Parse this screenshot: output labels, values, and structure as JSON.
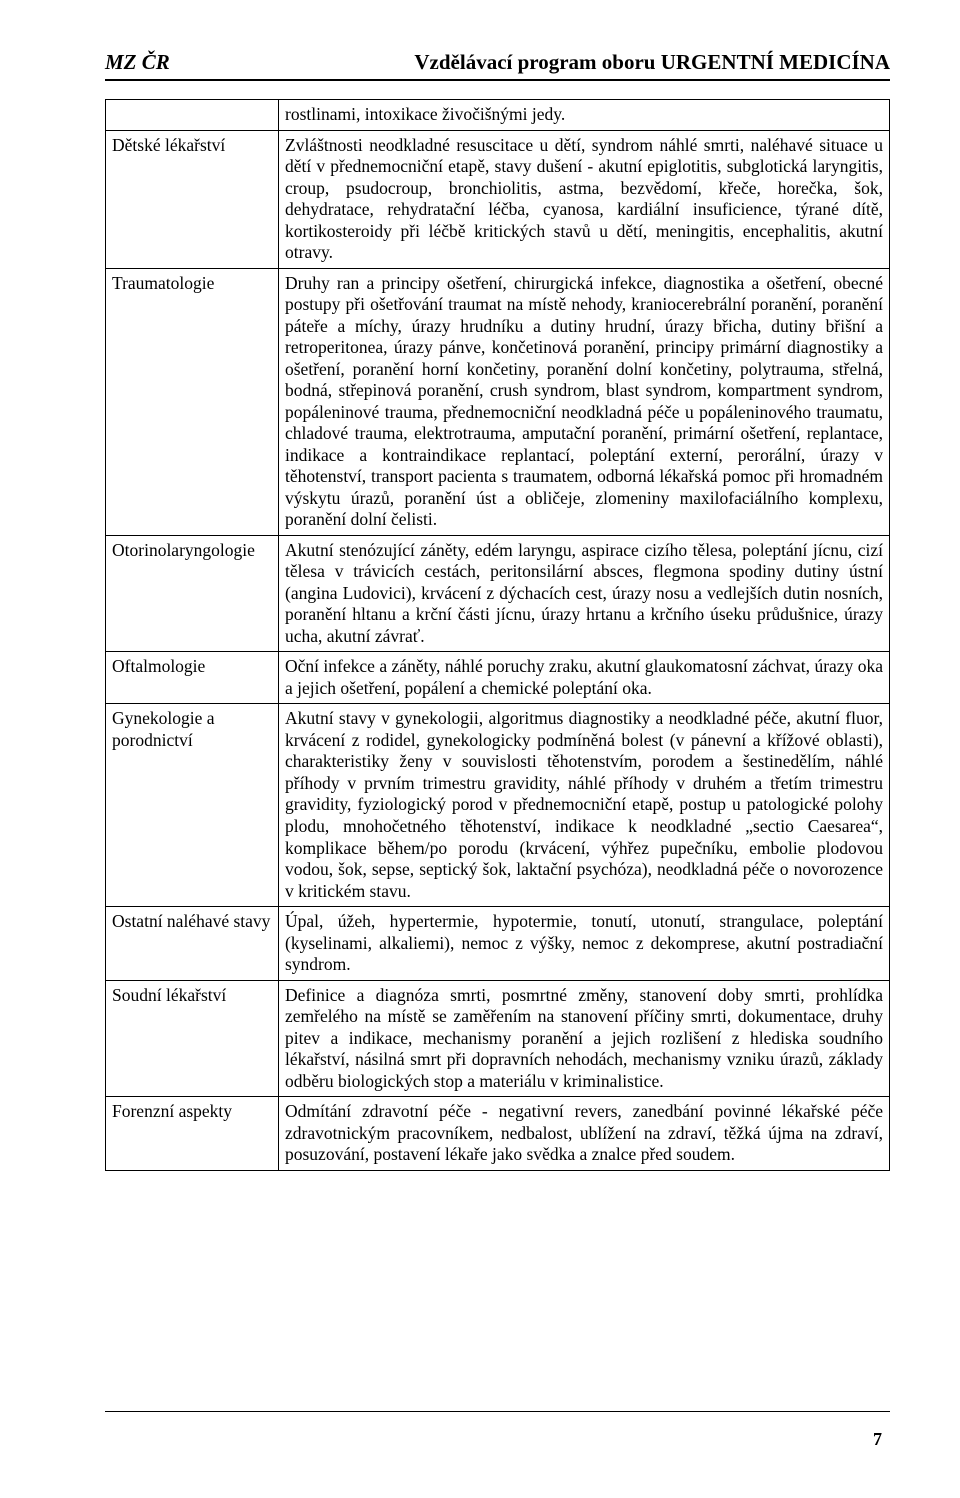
{
  "header": {
    "left": "MZ ČR",
    "right": "Vzdělávací program oboru URGENTNÍ MEDICÍNA"
  },
  "page_number": "7",
  "rows": [
    {
      "label": "",
      "body": "rostlinami, intoxikace živočišnými jedy."
    },
    {
      "label": "Dětské lékařství",
      "body": "Zvláštnosti neodkladné resuscitace u dětí, syndrom náhlé smrti, naléhavé situace u dětí v přednemocniční etapě, stavy dušení - akutní epiglotitis, subglotická laryngitis, croup, psudocroup, bronchiolitis, astma, bezvědomí, křeče, horečka, šok, dehydratace, rehydratační léčba, cyanosa, kardiální insuficience, týrané dítě, kortikosteroidy při léčbě kritických stavů u dětí, meningitis, encephalitis, akutní otravy."
    },
    {
      "label": "Traumatologie",
      "body": "Druhy ran a principy ošetření, chirurgická infekce, diagnostika a ošetření, obecné postupy při ošetřování traumat na místě nehody, kraniocerebrální poranění, poranění páteře a míchy, úrazy hrudníku a dutiny hrudní, úrazy břicha, dutiny břišní a retroperitonea, úrazy pánve, končetinová poranění, principy primární diagnostiky a ošetření, poranění horní končetiny, poranění dolní končetiny, polytrauma, střelná, bodná, střepinová poranění, crush syndrom, blast syndrom, kompartment syndrom, popáleninové trauma, přednemocniční neodkladná péče u popáleninového traumatu, chladové trauma, elektrotrauma, amputační poranění, primární ošetření, replantace, indikace a kontraindikace replantací, poleptání externí, perorální, úrazy v těhotenství, transport pacienta s traumatem, odborná lékařská pomoc při hromadném výskytu úrazů, poranění úst a obličeje, zlomeniny maxilofaciálního komplexu, poranění dolní čelisti."
    },
    {
      "label": "Otorinolaryngologie",
      "body": "Akutní stenózující záněty, edém laryngu, aspirace cizího tělesa, poleptání jícnu, cizí tělesa v trávicích cestách, peritonsilární absces, flegmona spodiny dutiny ústní (angina Ludovici), krvácení z dýchacích cest, úrazy nosu a vedlejších dutin nosních, poranění hltanu a krční části jícnu, úrazy hrtanu a krčního úseku průdušnice, úrazy ucha, akutní závrať."
    },
    {
      "label": "Oftalmologie",
      "body": "Oční infekce a záněty, náhlé poruchy zraku, akutní glaukomatosní záchvat, úrazy oka a jejich ošetření, popálení a chemické poleptání oka."
    },
    {
      "label": "Gynekologie a porodnictví",
      "body": "Akutní stavy v gynekologii, algoritmus diagnostiky a neodkladné péče, akutní fluor, krvácení z rodidel, gynekologicky podmíněná bolest (v pánevní a křížové oblasti), charakteristiky ženy v souvislosti těhotenstvím, porodem a šestinedělím, náhlé příhody v prvním trimestru gravidity, náhlé příhody v druhém a třetím trimestru gravidity, fyziologický porod v přednemocniční etapě, postup u patologické polohy plodu, mnohočetného těhotenství, indikace k neodkladné „sectio Caesarea“, komplikace během/po porodu (krvácení, výhřez pupečníku, embolie plodovou vodou, šok, sepse, septický šok, laktační psychóza), neodkladná péče o novorozence v kritickém stavu."
    },
    {
      "label": "Ostatní naléhavé stavy",
      "body": "Úpal, úžeh, hypertermie, hypotermie, tonutí, utonutí, strangulace, poleptání (kyselinami, alkaliemi), nemoc z výšky, nemoc z dekomprese, akutní postradiační syndrom."
    },
    {
      "label": "Soudní lékařství",
      "body": "Definice a diagnóza smrti, posmrtné změny, stanovení doby smrti, prohlídka zemřelého na místě se zaměřením na stanovení příčiny smrti, dokumentace, druhy pitev a indikace, mechanismy poranění a jejich rozlišení z hlediska soudního lékařství, násilná smrt při dopravních nehodách, mechanismy vzniku úrazů, základy odběru biologických stop a materiálu v kriminalistice."
    },
    {
      "label": "Forenzní aspekty",
      "body": "Odmítání zdravotní péče - negativní revers, zanedbání povinné lékařské péče zdravotnickým pracovníkem, nedbalost, ublížení na zdraví, těžká újma na zdraví, posuzování, postavení lékaře jako svědka a znalce před soudem."
    }
  ]
}
